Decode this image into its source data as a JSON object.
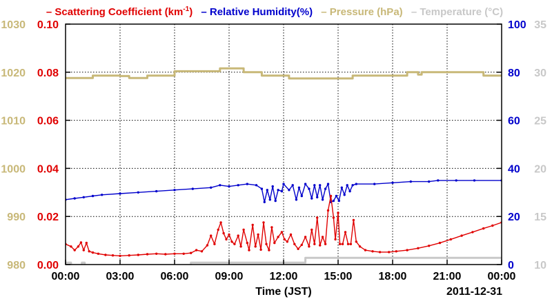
{
  "chart_data": {
    "type": "line",
    "date": "2011-12-31",
    "xlabel": "Time (JST)",
    "x_ticks": [
      "00:00",
      "03:00",
      "06:00",
      "09:00",
      "12:00",
      "15:00",
      "18:00",
      "21:00",
      "00:00"
    ],
    "xlim_hours": [
      0,
      24
    ],
    "grid": true,
    "legend_position": "top",
    "axes": {
      "pressure": {
        "side": "left-outer",
        "ticks": [
          "980",
          "990",
          "1000",
          "1010",
          "1020",
          "1030"
        ],
        "range": [
          980,
          1030
        ],
        "color": "#c8b878"
      },
      "scattering": {
        "side": "left-inner",
        "ticks": [
          "0.00",
          "0.02",
          "0.04",
          "0.06",
          "0.08",
          "0.10"
        ],
        "range": [
          0,
          0.1
        ],
        "color": "#e00000"
      },
      "humidity": {
        "side": "right-inner",
        "ticks": [
          "0",
          "20",
          "40",
          "60",
          "80",
          "100"
        ],
        "range": [
          0,
          100
        ],
        "color": "#0000cc"
      },
      "temperature": {
        "side": "right-outer",
        "ticks": [
          "10",
          "15",
          "20",
          "25",
          "30",
          "35"
        ],
        "range": [
          10,
          35
        ],
        "color": "#c8c8c8"
      }
    },
    "series": [
      {
        "name": "Scattering Coefficient (km⁻¹)",
        "legend_prefix": "– Scattering Coefficient (km",
        "legend_sup": "-1",
        "legend_suffix": ")",
        "axis": "scattering",
        "color": "#e00000",
        "marker": "dot",
        "points": [
          [
            0.0,
            0.0085
          ],
          [
            0.3,
            0.0075
          ],
          [
            0.5,
            0.006
          ],
          [
            0.7,
            0.0075
          ],
          [
            0.85,
            0.0092
          ],
          [
            1.0,
            0.006
          ],
          [
            1.15,
            0.009
          ],
          [
            1.3,
            0.0055
          ],
          [
            1.5,
            0.005
          ],
          [
            1.8,
            0.0045
          ],
          [
            2.2,
            0.004
          ],
          [
            2.6,
            0.0038
          ],
          [
            3.0,
            0.0036
          ],
          [
            3.5,
            0.0038
          ],
          [
            4.0,
            0.004
          ],
          [
            4.5,
            0.0043
          ],
          [
            5.0,
            0.0045
          ],
          [
            5.5,
            0.0043
          ],
          [
            6.0,
            0.0045
          ],
          [
            6.5,
            0.0045
          ],
          [
            6.9,
            0.0048
          ],
          [
            7.2,
            0.006
          ],
          [
            7.5,
            0.0055
          ],
          [
            7.8,
            0.008
          ],
          [
            8.0,
            0.012
          ],
          [
            8.2,
            0.0085
          ],
          [
            8.4,
            0.0145
          ],
          [
            8.55,
            0.0175
          ],
          [
            8.7,
            0.013
          ],
          [
            8.85,
            0.0105
          ],
          [
            9.0,
            0.0125
          ],
          [
            9.15,
            0.0095
          ],
          [
            9.3,
            0.0085
          ],
          [
            9.5,
            0.012
          ],
          [
            9.65,
            0.0075
          ],
          [
            9.8,
            0.0145
          ],
          [
            10.0,
            0.009
          ],
          [
            10.1,
            0.006
          ],
          [
            10.3,
            0.0165
          ],
          [
            10.45,
            0.0075
          ],
          [
            10.6,
            0.0125
          ],
          [
            10.75,
            0.0062
          ],
          [
            10.9,
            0.0175
          ],
          [
            11.05,
            0.0085
          ],
          [
            11.2,
            0.006
          ],
          [
            11.35,
            0.0155
          ],
          [
            11.5,
            0.009
          ],
          [
            11.7,
            0.0115
          ],
          [
            11.9,
            0.0135
          ],
          [
            12.05,
            0.0105
          ],
          [
            12.2,
            0.0095
          ],
          [
            12.4,
            0.0125
          ],
          [
            12.6,
            0.0085
          ],
          [
            12.8,
            0.0065
          ],
          [
            13.0,
            0.0082
          ],
          [
            13.2,
            0.0115
          ],
          [
            13.4,
            0.0075
          ],
          [
            13.55,
            0.0145
          ],
          [
            13.7,
            0.0085
          ],
          [
            13.85,
            0.0195
          ],
          [
            14.0,
            0.008
          ],
          [
            14.15,
            0.0115
          ],
          [
            14.3,
            0.0085
          ],
          [
            14.45,
            0.0225
          ],
          [
            14.6,
            0.0285
          ],
          [
            14.75,
            0.0195
          ],
          [
            14.85,
            0.0105
          ],
          [
            15.0,
            0.0215
          ],
          [
            15.1,
            0.0085
          ],
          [
            15.25,
            0.0085
          ],
          [
            15.4,
            0.0135
          ],
          [
            15.55,
            0.0085
          ],
          [
            15.7,
            0.0085
          ],
          [
            15.85,
            0.0185
          ],
          [
            16.0,
            0.0095
          ],
          [
            16.2,
            0.0075
          ],
          [
            16.5,
            0.006
          ],
          [
            16.9,
            0.0055
          ],
          [
            17.3,
            0.0052
          ],
          [
            17.8,
            0.0052
          ],
          [
            18.2,
            0.0055
          ],
          [
            18.8,
            0.006
          ],
          [
            19.4,
            0.0068
          ],
          [
            20.0,
            0.0078
          ],
          [
            20.6,
            0.009
          ],
          [
            21.2,
            0.0105
          ],
          [
            21.8,
            0.012
          ],
          [
            22.4,
            0.0135
          ],
          [
            23.0,
            0.015
          ],
          [
            23.5,
            0.0162
          ],
          [
            24.0,
            0.0175
          ]
        ]
      },
      {
        "name": "Relative Humidity(%)",
        "legend_label": "– Relative Humidity(%)",
        "axis": "humidity",
        "color": "#0000cc",
        "marker": "dot",
        "points": [
          [
            0.0,
            27.0
          ],
          [
            0.5,
            27.5
          ],
          [
            1.0,
            28.0
          ],
          [
            1.5,
            28.5
          ],
          [
            2.0,
            29.0
          ],
          [
            3.0,
            29.5
          ],
          [
            4.0,
            30.0
          ],
          [
            5.0,
            30.5
          ],
          [
            6.0,
            31.0
          ],
          [
            7.0,
            31.5
          ],
          [
            8.0,
            32.0
          ],
          [
            8.5,
            33.0
          ],
          [
            9.0,
            32.5
          ],
          [
            9.5,
            33.0
          ],
          [
            10.0,
            33.5
          ],
          [
            10.5,
            33.0
          ],
          [
            10.8,
            31.5
          ],
          [
            10.95,
            26.0
          ],
          [
            11.1,
            31.0
          ],
          [
            11.25,
            27.0
          ],
          [
            11.4,
            32.5
          ],
          [
            11.55,
            26.5
          ],
          [
            11.7,
            31.0
          ],
          [
            11.9,
            30.5
          ],
          [
            12.0,
            33.5
          ],
          [
            12.3,
            31.0
          ],
          [
            12.5,
            33.0
          ],
          [
            12.7,
            27.0
          ],
          [
            12.85,
            32.0
          ],
          [
            13.0,
            28.5
          ],
          [
            13.2,
            33.5
          ],
          [
            13.4,
            31.5
          ],
          [
            13.55,
            27.5
          ],
          [
            13.7,
            33.0
          ],
          [
            13.85,
            28.0
          ],
          [
            14.0,
            33.0
          ],
          [
            14.15,
            27.0
          ],
          [
            14.3,
            31.5
          ],
          [
            14.45,
            33.5
          ],
          [
            14.6,
            26.0
          ],
          [
            14.75,
            26.5
          ],
          [
            14.9,
            28.5
          ],
          [
            15.05,
            26.5
          ],
          [
            15.2,
            32.0
          ],
          [
            15.35,
            29.0
          ],
          [
            15.5,
            33.0
          ],
          [
            15.65,
            30.5
          ],
          [
            15.8,
            33.0
          ],
          [
            16.0,
            33.5
          ],
          [
            17.0,
            33.5
          ],
          [
            18.0,
            34.0
          ],
          [
            19.0,
            34.5
          ],
          [
            20.0,
            34.5
          ],
          [
            20.5,
            35.0
          ],
          [
            21.5,
            35.0
          ],
          [
            22.5,
            35.0
          ],
          [
            24.0,
            35.0
          ]
        ]
      },
      {
        "name": "Pressure (hPa)",
        "legend_label": "– Pressure (hPa)",
        "axis": "pressure",
        "color": "#c8b878",
        "marker": "none",
        "points": [
          [
            0.0,
            1018.8
          ],
          [
            1.5,
            1018.8
          ],
          [
            1.5,
            1019.3
          ],
          [
            3.0,
            1019.3
          ],
          [
            3.0,
            1019.2
          ],
          [
            3.5,
            1019.2
          ],
          [
            3.5,
            1018.8
          ],
          [
            4.5,
            1018.8
          ],
          [
            4.5,
            1019.3
          ],
          [
            6.0,
            1019.3
          ],
          [
            6.0,
            1020.2
          ],
          [
            8.5,
            1020.2
          ],
          [
            8.5,
            1020.8
          ],
          [
            9.8,
            1020.8
          ],
          [
            9.8,
            1020.0
          ],
          [
            10.8,
            1020.0
          ],
          [
            10.8,
            1019.3
          ],
          [
            12.3,
            1019.3
          ],
          [
            12.3,
            1018.7
          ],
          [
            15.8,
            1018.7
          ],
          [
            15.8,
            1019.3
          ],
          [
            18.8,
            1019.3
          ],
          [
            18.8,
            1020.0
          ],
          [
            19.4,
            1020.0
          ],
          [
            19.4,
            1019.5
          ],
          [
            19.6,
            1019.5
          ],
          [
            19.6,
            1020.0
          ],
          [
            23.0,
            1020.0
          ],
          [
            23.0,
            1019.3
          ],
          [
            24.0,
            1019.3
          ]
        ]
      },
      {
        "name": "Temperature (°C)",
        "legend_label": "– Temperature (°C)",
        "axis": "temperature",
        "color": "#c8c8c8",
        "marker": "none",
        "points": [
          [
            0.0,
            10.2
          ],
          [
            0.3,
            10.2
          ],
          [
            0.3,
            9.8
          ],
          [
            0.9,
            9.8
          ],
          [
            0.9,
            10.2
          ],
          [
            1.05,
            10.2
          ],
          [
            1.05,
            9.8
          ],
          [
            6.9,
            9.8
          ],
          [
            6.9,
            10.2
          ],
          [
            13.2,
            10.2
          ],
          [
            13.2,
            10.7
          ],
          [
            24.0,
            10.7
          ]
        ]
      }
    ]
  }
}
